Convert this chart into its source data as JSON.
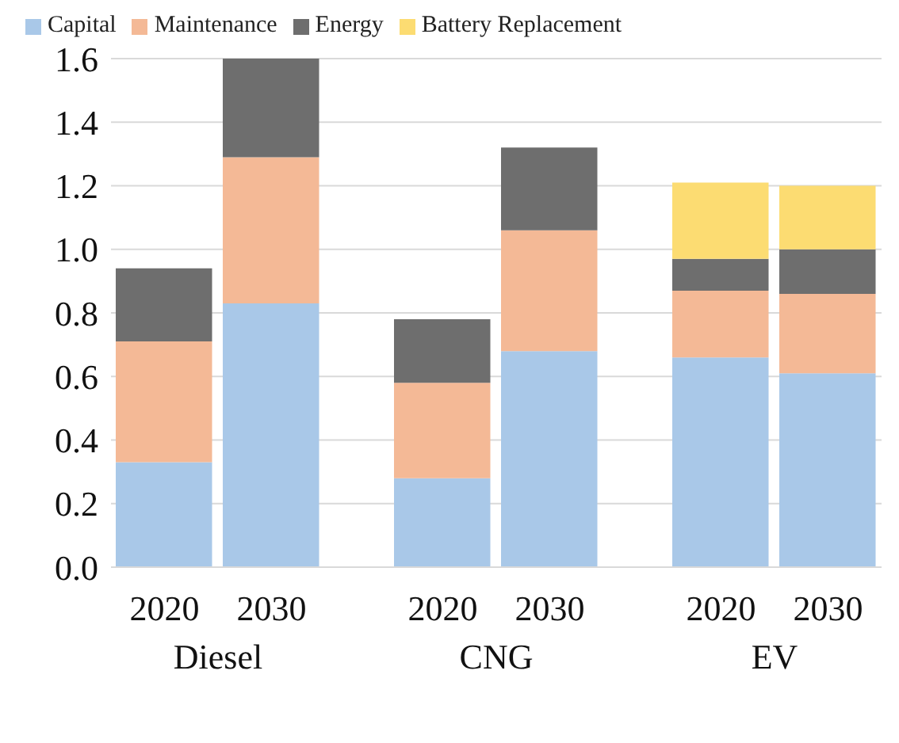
{
  "chart_data": {
    "type": "bar",
    "stacked": true,
    "categories": [
      "2020",
      "2030",
      "2020",
      "2030",
      "2020",
      "2030"
    ],
    "series": [
      {
        "name": "Capital",
        "color": "#a9c8e8",
        "values": [
          0.33,
          0.83,
          0.28,
          0.68,
          0.66,
          0.61
        ]
      },
      {
        "name": "Maintenance",
        "color": "#f4b996",
        "values": [
          0.38,
          0.46,
          0.3,
          0.38,
          0.21,
          0.25
        ]
      },
      {
        "name": "Energy",
        "color": "#6e6e6e",
        "values": [
          0.23,
          0.31,
          0.2,
          0.26,
          0.1,
          0.14
        ]
      },
      {
        "name": "Battery Replacement",
        "color": "#fcdc72",
        "values": [
          null,
          null,
          null,
          null,
          0.24,
          0.2
        ]
      }
    ],
    "annotations": [
      "Diesel",
      "CNG",
      "EV"
    ],
    "ylim": [
      0,
      1.6
    ],
    "yticks": [
      {
        "value": 0,
        "label": "0.0"
      },
      0.2,
      0.4,
      0.6,
      0.8,
      {
        "value": 1,
        "label": "1.0"
      },
      1.2,
      1.4,
      1.6
    ],
    "grid": "y",
    "legend": "top"
  }
}
